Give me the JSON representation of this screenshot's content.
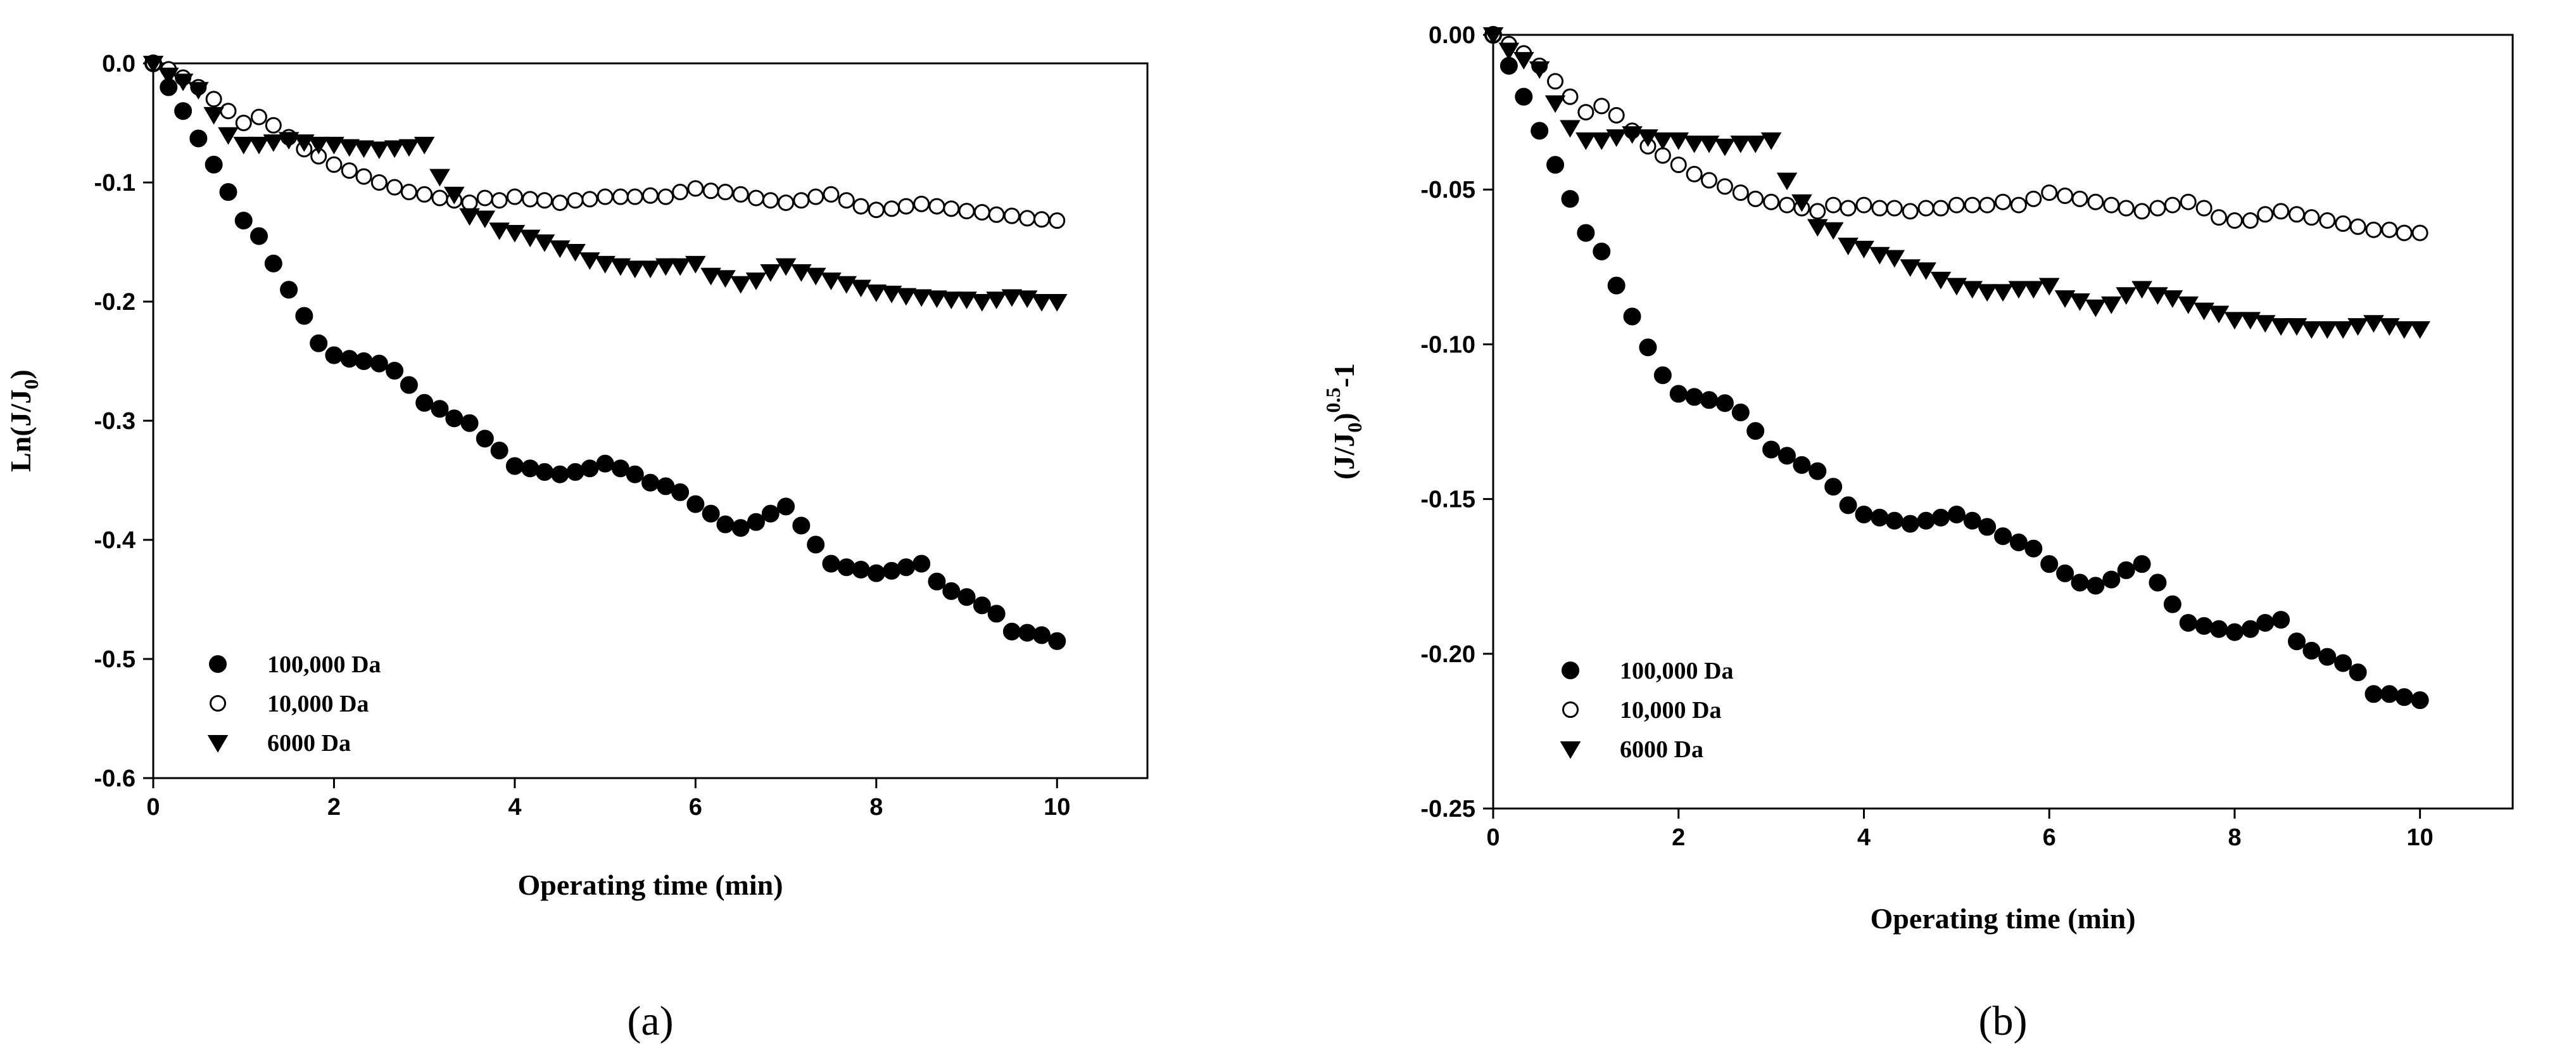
{
  "chart_data": [
    {
      "type": "scatter",
      "panel_label": "(a)",
      "xlabel": "Operating time (min)",
      "ylabel": "Ln(J/J0)",
      "ylabel_parts": {
        "main": "Ln(J/J",
        "sub": "0",
        "end": ")"
      },
      "xlim": [
        0,
        11
      ],
      "ylim": [
        -0.6,
        0.0
      ],
      "xticks": [
        0,
        2,
        4,
        6,
        8,
        10
      ],
      "xtick_labels": [
        "0",
        "2",
        "4",
        "6",
        "8",
        "10"
      ],
      "yticks": [
        0.0,
        -0.1,
        -0.2,
        -0.3,
        -0.4,
        -0.5,
        -0.6
      ],
      "ytick_labels": [
        "0.0",
        "-0.1",
        "-0.2",
        "-0.3",
        "-0.4",
        "-0.5",
        "-0.6"
      ],
      "legend_position": "bottom-left",
      "series": [
        {
          "name": "100,000 Da",
          "marker": "filled-circle",
          "x": [
            0,
            0.17,
            0.33,
            0.5,
            0.67,
            0.83,
            1.0,
            1.17,
            1.33,
            1.5,
            1.67,
            1.83,
            2.0,
            2.17,
            2.33,
            2.5,
            2.67,
            2.83,
            3.0,
            3.17,
            3.33,
            3.5,
            3.67,
            3.83,
            4.0,
            4.17,
            4.33,
            4.5,
            4.67,
            4.83,
            5.0,
            5.17,
            5.33,
            5.5,
            5.67,
            5.83,
            6.0,
            6.17,
            6.33,
            6.5,
            6.67,
            6.83,
            7.0,
            7.17,
            7.33,
            7.5,
            7.67,
            7.83,
            8.0,
            8.17,
            8.33,
            8.5,
            8.67,
            8.83,
            9.0,
            9.17,
            9.33,
            9.5,
            9.67,
            9.83,
            10.0
          ],
          "y": [
            0.0,
            -0.02,
            -0.04,
            -0.063,
            -0.085,
            -0.108,
            -0.132,
            -0.145,
            -0.168,
            -0.19,
            -0.212,
            -0.235,
            -0.245,
            -0.248,
            -0.25,
            -0.252,
            -0.258,
            -0.27,
            -0.285,
            -0.29,
            -0.298,
            -0.302,
            -0.315,
            -0.325,
            -0.338,
            -0.34,
            -0.343,
            -0.345,
            -0.343,
            -0.34,
            -0.336,
            -0.34,
            -0.345,
            -0.352,
            -0.355,
            -0.36,
            -0.37,
            -0.378,
            -0.387,
            -0.39,
            -0.385,
            -0.378,
            -0.372,
            -0.388,
            -0.404,
            -0.42,
            -0.423,
            -0.425,
            -0.428,
            -0.426,
            -0.423,
            -0.42,
            -0.435,
            -0.443,
            -0.448,
            -0.455,
            -0.462,
            -0.477,
            -0.478,
            -0.48,
            -0.485
          ]
        },
        {
          "name": "10,000 Da",
          "marker": "open-circle",
          "x": [
            0,
            0.17,
            0.33,
            0.5,
            0.67,
            0.83,
            1.0,
            1.17,
            1.33,
            1.5,
            1.67,
            1.83,
            2.0,
            2.17,
            2.33,
            2.5,
            2.67,
            2.83,
            3.0,
            3.17,
            3.33,
            3.5,
            3.67,
            3.83,
            4.0,
            4.17,
            4.33,
            4.5,
            4.67,
            4.83,
            5.0,
            5.17,
            5.33,
            5.5,
            5.67,
            5.83,
            6.0,
            6.17,
            6.33,
            6.5,
            6.67,
            6.83,
            7.0,
            7.17,
            7.33,
            7.5,
            7.67,
            7.83,
            8.0,
            8.17,
            8.33,
            8.5,
            8.67,
            8.83,
            9.0,
            9.17,
            9.33,
            9.5,
            9.67,
            9.83,
            10.0
          ],
          "y": [
            0.0,
            -0.005,
            -0.012,
            -0.02,
            -0.03,
            -0.04,
            -0.05,
            -0.045,
            -0.052,
            -0.062,
            -0.072,
            -0.078,
            -0.085,
            -0.09,
            -0.095,
            -0.1,
            -0.104,
            -0.108,
            -0.11,
            -0.113,
            -0.115,
            -0.117,
            -0.113,
            -0.115,
            -0.112,
            -0.114,
            -0.115,
            -0.117,
            -0.115,
            -0.114,
            -0.112,
            -0.112,
            -0.112,
            -0.111,
            -0.112,
            -0.108,
            -0.105,
            -0.107,
            -0.108,
            -0.11,
            -0.113,
            -0.115,
            -0.117,
            -0.115,
            -0.112,
            -0.11,
            -0.115,
            -0.12,
            -0.123,
            -0.122,
            -0.12,
            -0.118,
            -0.12,
            -0.122,
            -0.124,
            -0.125,
            -0.127,
            -0.128,
            -0.13,
            -0.131,
            -0.132
          ]
        },
        {
          "name": "6000 Da",
          "marker": "filled-down-triangle",
          "x": [
            0,
            0.17,
            0.33,
            0.5,
            0.67,
            0.83,
            1.0,
            1.17,
            1.33,
            1.5,
            1.67,
            1.83,
            2.0,
            2.17,
            2.33,
            2.5,
            2.67,
            2.83,
            3.0,
            3.17,
            3.33,
            3.5,
            3.67,
            3.83,
            4.0,
            4.17,
            4.33,
            4.5,
            4.67,
            4.83,
            5.0,
            5.17,
            5.33,
            5.5,
            5.67,
            5.83,
            6.0,
            6.17,
            6.33,
            6.5,
            6.67,
            6.83,
            7.0,
            7.17,
            7.33,
            7.5,
            7.67,
            7.83,
            8.0,
            8.17,
            8.33,
            8.5,
            8.67,
            8.83,
            9.0,
            9.17,
            9.33,
            9.5,
            9.67,
            9.83,
            10.0
          ],
          "y": [
            0.0,
            -0.01,
            -0.015,
            -0.022,
            -0.043,
            -0.06,
            -0.068,
            -0.068,
            -0.066,
            -0.064,
            -0.066,
            -0.068,
            -0.068,
            -0.07,
            -0.071,
            -0.072,
            -0.071,
            -0.07,
            -0.068,
            -0.095,
            -0.11,
            -0.128,
            -0.13,
            -0.14,
            -0.142,
            -0.146,
            -0.15,
            -0.155,
            -0.158,
            -0.165,
            -0.168,
            -0.17,
            -0.172,
            -0.172,
            -0.17,
            -0.17,
            -0.168,
            -0.178,
            -0.18,
            -0.185,
            -0.182,
            -0.175,
            -0.17,
            -0.175,
            -0.178,
            -0.182,
            -0.185,
            -0.188,
            -0.192,
            -0.193,
            -0.195,
            -0.196,
            -0.197,
            -0.198,
            -0.198,
            -0.2,
            -0.198,
            -0.196,
            -0.197,
            -0.2,
            -0.2
          ]
        }
      ]
    },
    {
      "type": "scatter",
      "panel_label": "(b)",
      "xlabel": "Operating time (min)",
      "ylabel": "(J/J0)^0.5 -1",
      "ylabel_parts": {
        "main": "(J/J",
        "sub": "0",
        "end": ")",
        "sup": "0.5",
        "tail": "-1"
      },
      "xlim": [
        0,
        11
      ],
      "ylim": [
        -0.25,
        0.0
      ],
      "xticks": [
        0,
        2,
        4,
        6,
        8,
        10
      ],
      "xtick_labels": [
        "0",
        "2",
        "4",
        "6",
        "8",
        "10"
      ],
      "yticks": [
        0.0,
        -0.05,
        -0.1,
        -0.15,
        -0.2,
        -0.25
      ],
      "ytick_labels": [
        "0.00",
        "-0.05",
        "-0.10",
        "-0.15",
        "-0.20",
        "-0.25"
      ],
      "legend_position": "bottom-left",
      "series": [
        {
          "name": "100,000 Da",
          "marker": "filled-circle",
          "x": [
            0,
            0.17,
            0.33,
            0.5,
            0.67,
            0.83,
            1.0,
            1.17,
            1.33,
            1.5,
            1.67,
            1.83,
            2.0,
            2.17,
            2.33,
            2.5,
            2.67,
            2.83,
            3.0,
            3.17,
            3.33,
            3.5,
            3.67,
            3.83,
            4.0,
            4.17,
            4.33,
            4.5,
            4.67,
            4.83,
            5.0,
            5.17,
            5.33,
            5.5,
            5.67,
            5.83,
            6.0,
            6.17,
            6.33,
            6.5,
            6.67,
            6.83,
            7.0,
            7.17,
            7.33,
            7.5,
            7.67,
            7.83,
            8.0,
            8.17,
            8.33,
            8.5,
            8.67,
            8.83,
            9.0,
            9.17,
            9.33,
            9.5,
            9.67,
            9.83,
            10.0
          ],
          "y": [
            0.0,
            -0.01,
            -0.02,
            -0.031,
            -0.042,
            -0.053,
            -0.064,
            -0.07,
            -0.081,
            -0.091,
            -0.101,
            -0.11,
            -0.116,
            -0.117,
            -0.118,
            -0.119,
            -0.122,
            -0.128,
            -0.134,
            -0.136,
            -0.139,
            -0.141,
            -0.146,
            -0.152,
            -0.155,
            -0.156,
            -0.157,
            -0.158,
            -0.157,
            -0.156,
            -0.155,
            -0.157,
            -0.159,
            -0.162,
            -0.164,
            -0.166,
            -0.171,
            -0.174,
            -0.177,
            -0.178,
            -0.176,
            -0.173,
            -0.171,
            -0.177,
            -0.184,
            -0.19,
            -0.191,
            -0.192,
            -0.193,
            -0.192,
            -0.19,
            -0.189,
            -0.196,
            -0.199,
            -0.201,
            -0.203,
            -0.206,
            -0.213,
            -0.213,
            -0.214,
            -0.215
          ]
        },
        {
          "name": "10,000 Da",
          "marker": "open-circle",
          "x": [
            0,
            0.17,
            0.33,
            0.5,
            0.67,
            0.83,
            1.0,
            1.17,
            1.33,
            1.5,
            1.67,
            1.83,
            2.0,
            2.17,
            2.33,
            2.5,
            2.67,
            2.83,
            3.0,
            3.17,
            3.33,
            3.5,
            3.67,
            3.83,
            4.0,
            4.17,
            4.33,
            4.5,
            4.67,
            4.83,
            5.0,
            5.17,
            5.33,
            5.5,
            5.67,
            5.83,
            6.0,
            6.17,
            6.33,
            6.5,
            6.67,
            6.83,
            7.0,
            7.17,
            7.33,
            7.5,
            7.67,
            7.83,
            8.0,
            8.17,
            8.33,
            8.5,
            8.67,
            8.83,
            9.0,
            9.17,
            9.33,
            9.5,
            9.67,
            9.83,
            10.0
          ],
          "y": [
            0.0,
            -0.003,
            -0.006,
            -0.01,
            -0.015,
            -0.02,
            -0.025,
            -0.023,
            -0.026,
            -0.031,
            -0.036,
            -0.039,
            -0.042,
            -0.045,
            -0.047,
            -0.049,
            -0.051,
            -0.053,
            -0.054,
            -0.055,
            -0.056,
            -0.057,
            -0.055,
            -0.056,
            -0.055,
            -0.056,
            -0.056,
            -0.057,
            -0.056,
            -0.056,
            -0.055,
            -0.055,
            -0.055,
            -0.054,
            -0.055,
            -0.053,
            -0.051,
            -0.052,
            -0.053,
            -0.054,
            -0.055,
            -0.056,
            -0.057,
            -0.056,
            -0.055,
            -0.054,
            -0.056,
            -0.059,
            -0.06,
            -0.06,
            -0.058,
            -0.057,
            -0.058,
            -0.059,
            -0.06,
            -0.061,
            -0.062,
            -0.063,
            -0.063,
            -0.064,
            -0.064
          ]
        },
        {
          "name": "6000 Da",
          "marker": "filled-down-triangle",
          "x": [
            0,
            0.17,
            0.33,
            0.5,
            0.67,
            0.83,
            1.0,
            1.17,
            1.33,
            1.5,
            1.67,
            1.83,
            2.0,
            2.17,
            2.33,
            2.5,
            2.67,
            2.83,
            3.0,
            3.17,
            3.33,
            3.5,
            3.67,
            3.83,
            4.0,
            4.17,
            4.33,
            4.5,
            4.67,
            4.83,
            5.0,
            5.17,
            5.33,
            5.5,
            5.67,
            5.83,
            6.0,
            6.17,
            6.33,
            6.5,
            6.67,
            6.83,
            7.0,
            7.17,
            7.33,
            7.5,
            7.67,
            7.83,
            8.0,
            8.17,
            8.33,
            8.5,
            8.67,
            8.83,
            9.0,
            9.17,
            9.33,
            9.5,
            9.67,
            9.83,
            10.0
          ],
          "y": [
            0.0,
            -0.005,
            -0.008,
            -0.011,
            -0.022,
            -0.03,
            -0.034,
            -0.034,
            -0.033,
            -0.032,
            -0.033,
            -0.034,
            -0.034,
            -0.035,
            -0.035,
            -0.036,
            -0.035,
            -0.035,
            -0.034,
            -0.047,
            -0.054,
            -0.062,
            -0.063,
            -0.068,
            -0.069,
            -0.071,
            -0.072,
            -0.075,
            -0.076,
            -0.079,
            -0.081,
            -0.082,
            -0.083,
            -0.083,
            -0.082,
            -0.082,
            -0.081,
            -0.085,
            -0.086,
            -0.088,
            -0.087,
            -0.084,
            -0.082,
            -0.084,
            -0.085,
            -0.087,
            -0.089,
            -0.09,
            -0.092,
            -0.092,
            -0.093,
            -0.094,
            -0.094,
            -0.095,
            -0.095,
            -0.095,
            -0.094,
            -0.093,
            -0.094,
            -0.095,
            -0.095
          ]
        }
      ]
    }
  ]
}
